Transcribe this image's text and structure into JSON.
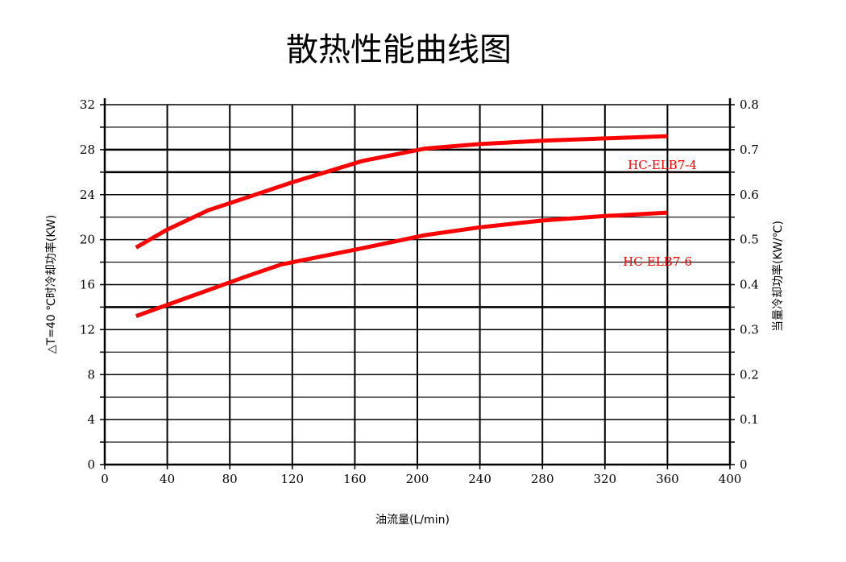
{
  "chart_data": {
    "type": "line",
    "title": "散热性能曲线图",
    "xlabel": "油流量(L/min)",
    "ylabel": "△T=40 ℃时冷却功率(KW)",
    "y2label": "当量冷却功率(KW/℃)",
    "xlim": [
      0,
      400
    ],
    "ylim": [
      0,
      32
    ],
    "y2lim": [
      0,
      0.8
    ],
    "x_ticks": [
      "0",
      "40",
      "80",
      "120",
      "160",
      "200",
      "240",
      "280",
      "320",
      "360",
      "400"
    ],
    "y_ticks": [
      "0",
      "4",
      "8",
      "12",
      "16",
      "20",
      "24",
      "28",
      "32"
    ],
    "y2_ticks": [
      "0",
      "0.1",
      "0.2",
      "0.3",
      "0.4",
      "0.5",
      "0.6",
      "0.7",
      "0.8"
    ],
    "grid": true,
    "series": [
      {
        "name": "HC-ELB7-4",
        "color": "#ff0000",
        "x": [
          20,
          40,
          66,
          90,
          120,
          165,
          205,
          240,
          280,
          320,
          360
        ],
        "y": [
          19.3,
          20.9,
          22.6,
          23.7,
          25.1,
          27.0,
          28.1,
          28.5,
          28.8,
          29.0,
          29.2
        ]
      },
      {
        "name": "HC-ELB7-6",
        "color": "#ff0000",
        "x": [
          20,
          40,
          66,
          90,
          113,
          160,
          205,
          240,
          280,
          320,
          360
        ],
        "y": [
          13.2,
          14.2,
          15.5,
          16.7,
          17.8,
          19.1,
          20.4,
          21.1,
          21.7,
          22.1,
          22.4
        ]
      }
    ]
  }
}
